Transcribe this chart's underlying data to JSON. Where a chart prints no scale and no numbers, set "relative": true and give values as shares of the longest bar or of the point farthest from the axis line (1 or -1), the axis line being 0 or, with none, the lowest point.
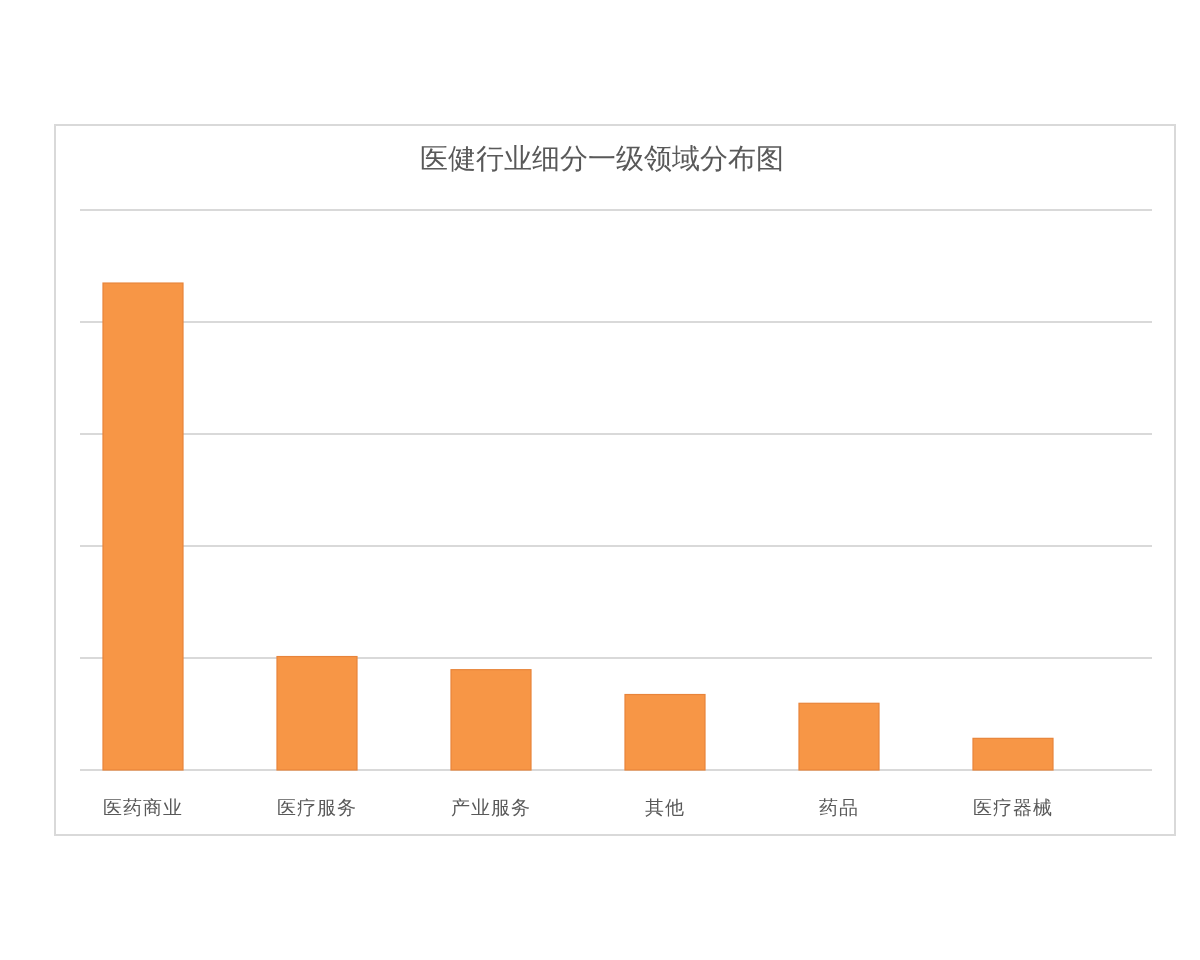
{
  "chart_data": {
    "type": "bar",
    "title": "医健行业细分一级领域分布图",
    "categories": [
      "医药商业",
      "医疗服务",
      "产业服务",
      "其他",
      "药品",
      "医疗器械"
    ],
    "values": [
      1,
      0.233,
      0.206,
      0.155,
      0.137,
      0.065
    ],
    "color": "#f79646",
    "relative": true,
    "grid": "y"
  }
}
